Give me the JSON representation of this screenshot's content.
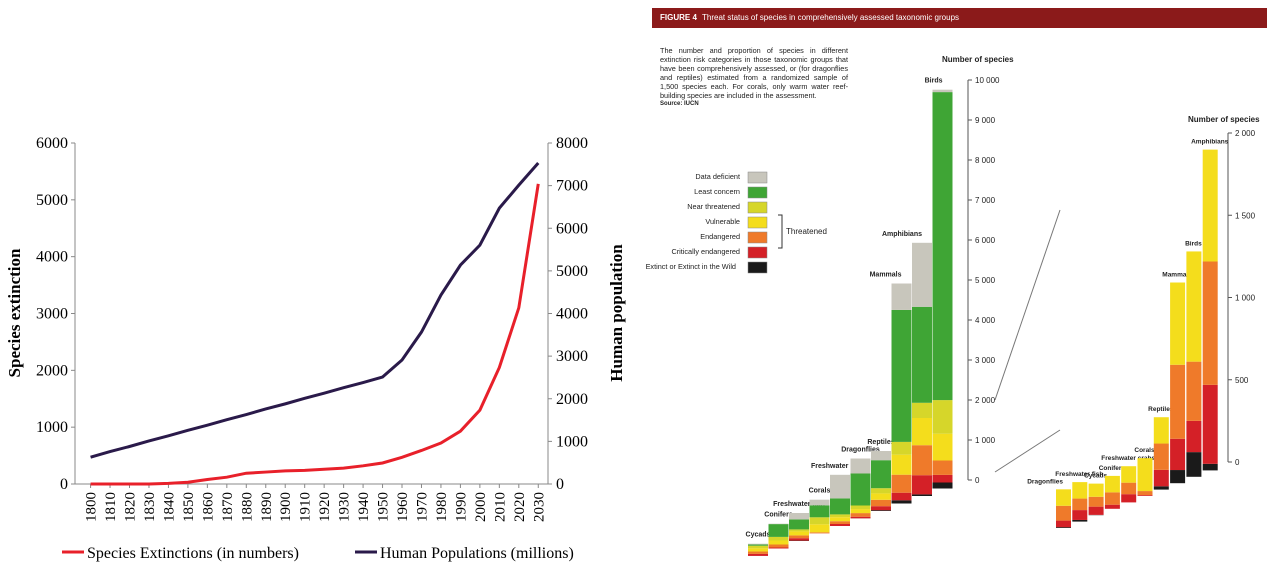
{
  "chart_data": [
    {
      "type": "line",
      "y_label": "Species extinction",
      "y2_label": "Human population",
      "x": [
        1800,
        1810,
        1820,
        1830,
        1840,
        1850,
        1860,
        1870,
        1880,
        1890,
        1900,
        1910,
        1920,
        1930,
        1940,
        1950,
        1960,
        1970,
        1980,
        1990,
        2000,
        2010,
        2020,
        2030
      ],
      "xlim": [
        1792,
        2035
      ],
      "xticks": [
        1800,
        1810,
        1820,
        1830,
        1840,
        1850,
        1860,
        1870,
        1880,
        1890,
        1900,
        1910,
        1920,
        1930,
        1940,
        1950,
        1960,
        1970,
        1980,
        1990,
        2000,
        2010,
        2020,
        2030
      ],
      "ylim": [
        0,
        6000
      ],
      "yticks": [
        0,
        1000,
        2000,
        3000,
        4000,
        5000,
        6000
      ],
      "y2lim": [
        0,
        8000
      ],
      "y2ticks": [
        0,
        1000,
        2000,
        3000,
        4000,
        5000,
        6000,
        7000,
        8000
      ],
      "series": [
        {
          "name": "Species Extinctions (in numbers)",
          "color": "#e8202a",
          "values": [
            0,
            0,
            0,
            0,
            10,
            30,
            80,
            120,
            190,
            210,
            230,
            240,
            260,
            280,
            320,
            370,
            470,
            590,
            720,
            930,
            1300,
            2050,
            3100,
            5280
          ]
        },
        {
          "name": "Human Populations (millions)",
          "color": "#2a1a4a",
          "axis": "y2",
          "values": [
            630,
            760,
            880,
            1010,
            1130,
            1260,
            1380,
            1510,
            1630,
            1760,
            1880,
            2010,
            2130,
            2260,
            2380,
            2510,
            2910,
            3565,
            4434,
            5135,
            5604,
            6472,
            7011,
            7530
          ]
        }
      ]
    },
    {
      "type": "stacked-bar",
      "figure_label": "FIGURE 4",
      "title": "Threat status of species in comprehensively assessed taxonomic groups",
      "description": "The number and proportion of species in different extinction risk categories in those taxonomic groups that have been comprehensively assessed, or (for dragonflies and reptiles) estimated from a randomized sample of 1,500 species each. For corals, only warm water reef-building species are included in the assessment.",
      "source": "Source: IUCN",
      "threatened_label": "Threatened",
      "y_label": "Number of species",
      "categories": [
        "Cycads",
        "Conifers",
        "Freshwater fish",
        "Corals",
        "Freshwater crabs",
        "Dragonflies",
        "Reptiles",
        "Mammals",
        "Amphibians",
        "Birds"
      ],
      "series": [
        {
          "name": "Data deficient",
          "color": "#c8c6bc",
          "values": [
            20,
            10,
            160,
            140,
            590,
            375,
            230,
            660,
            1600,
            60
          ]
        },
        {
          "name": "Least concern",
          "color": "#3fa535",
          "values": [
            30,
            320,
            250,
            300,
            400,
            800,
            700,
            3300,
            2400,
            7700
          ]
        },
        {
          "name": "Near threatened",
          "color": "#d6d62a",
          "values": [
            65,
            90,
            50,
            175,
            70,
            90,
            130,
            320,
            380,
            840
          ]
        },
        {
          "name": "Vulnerable",
          "color": "#f4dd1c",
          "values": [
            80,
            100,
            100,
            200,
            100,
            100,
            160,
            500,
            680,
            670
          ]
        },
        {
          "name": "Endangered",
          "color": "#ef7a2a",
          "values": [
            60,
            75,
            70,
            25,
            70,
            90,
            160,
            450,
            750,
            360
          ]
        },
        {
          "name": "Critically endangered",
          "color": "#d42027",
          "values": [
            50,
            25,
            60,
            5,
            50,
            40,
            100,
            190,
            480,
            190
          ]
        },
        {
          "name": "Extinct or Extinct in the Wild",
          "color": "#1a1a1a",
          "values": [
            2,
            0,
            10,
            0,
            0,
            5,
            20,
            80,
            40,
            150
          ]
        }
      ],
      "ylim": [
        0,
        10000
      ],
      "yticks": [
        0,
        {
          "value": 1000,
          "label": "1 000"
        },
        {
          "value": 2000,
          "label": "2 000"
        },
        {
          "value": 3000,
          "label": "3 000"
        },
        {
          "value": 4000,
          "label": "4 000"
        },
        {
          "value": 5000,
          "label": "5 000"
        },
        {
          "value": 6000,
          "label": "6 000"
        },
        {
          "value": 7000,
          "label": "7 000"
        },
        {
          "value": 8000,
          "label": "8 000"
        },
        {
          "value": 9000,
          "label": "9 000"
        },
        {
          "value": 10000,
          "label": "10 000"
        }
      ],
      "inset": {
        "y_label": "Number of species",
        "categories": [
          "Dragonflies",
          "Freshwater fish",
          "Cycads",
          "Conifers",
          "Freshwater crabs",
          "Corals",
          "Reptiles",
          "Mammals",
          "Birds",
          "Amphibians"
        ],
        "ylim": [
          0,
          2000
        ],
        "yticks": [
          0,
          500,
          {
            "value": 1000,
            "label": "1 000"
          },
          {
            "value": 1500,
            "label": "1 500"
          },
          {
            "value": 2000,
            "label": "2 000"
          }
        ],
        "threatened_values": [
          [
            100,
            100,
            80,
            100,
            100,
            200,
            160,
            500,
            670,
            680
          ],
          [
            90,
            70,
            60,
            75,
            70,
            25,
            160,
            450,
            360,
            750
          ],
          [
            40,
            60,
            50,
            25,
            50,
            5,
            100,
            190,
            190,
            480
          ],
          [
            5,
            10,
            2,
            0,
            0,
            0,
            20,
            80,
            150,
            40
          ]
        ]
      }
    }
  ]
}
